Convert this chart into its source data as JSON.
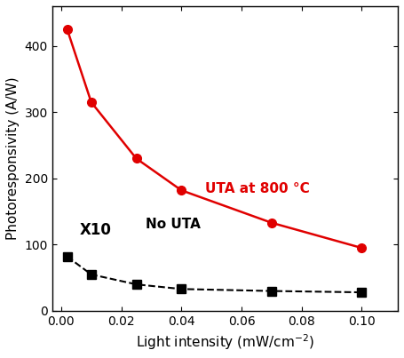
{
  "red_x": [
    0.002,
    0.01,
    0.025,
    0.04,
    0.07,
    0.1
  ],
  "red_y": [
    425,
    315,
    230,
    182,
    133,
    95
  ],
  "black_x": [
    0.002,
    0.01,
    0.025,
    0.04,
    0.07,
    0.1
  ],
  "black_y": [
    82,
    55,
    40,
    33,
    30,
    28
  ],
  "red_color": "#e00000",
  "black_color": "#000000",
  "xlabel": "Light intensity (mW/cm$^{-2}$)",
  "ylabel": "Photoresponsivity (A/W)",
  "xlim": [
    -0.003,
    0.112
  ],
  "ylim": [
    0,
    460
  ],
  "xticks": [
    0.0,
    0.02,
    0.04,
    0.06,
    0.08,
    0.1
  ],
  "yticks": [
    0,
    100,
    200,
    300,
    400
  ],
  "label_red": "UTA at 800 °C",
  "label_black": "No UTA",
  "annotation_x10": "X10",
  "title_fontsize": 11,
  "label_fontsize": 11,
  "tick_fontsize": 10,
  "annotation_fontsize": 12,
  "legend_fontsize": 11
}
